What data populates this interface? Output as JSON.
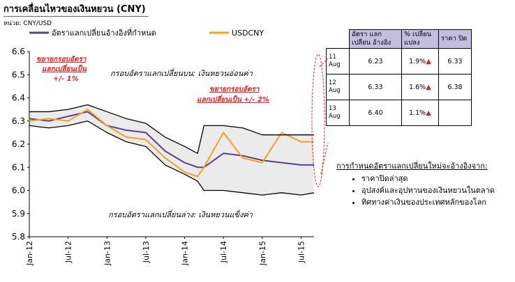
{
  "page": {
    "title": "การเคลื่อนไหวของเงินหยวน (CNY)",
    "unit": "หน่วย: CNY/USD"
  },
  "chart_data": {
    "type": "line",
    "title": "การเคลื่อนไหวของเงินหยวน (CNY)",
    "ylabel": "CNY/USD",
    "ylim": [
      5.8,
      6.6
    ],
    "yticks": [
      "6.6",
      "6.5",
      "6.4",
      "6.3",
      "6.2",
      "6.1",
      "6.0",
      "5.9",
      "5.8"
    ],
    "xticks": [
      "Jan-12",
      "Jul-12",
      "Jan-13",
      "Jul-13",
      "Jan-14",
      "Jul-14",
      "Jan-15",
      "Jul-15"
    ],
    "x_months": [
      0,
      3,
      6,
      9,
      12,
      15,
      18,
      21,
      24,
      26,
      27,
      30,
      33,
      36,
      39,
      42,
      44
    ],
    "series": [
      {
        "name": "อัตราแลกเปลี่ยนอ้างอิงที่กำหนด",
        "color": "#5b3f8f",
        "values": [
          6.31,
          6.3,
          6.32,
          6.34,
          6.28,
          6.26,
          6.25,
          6.17,
          6.12,
          6.1,
          6.1,
          6.16,
          6.15,
          6.13,
          6.12,
          6.11,
          6.11
        ]
      },
      {
        "name": "USDCNY",
        "color": "#f4a020",
        "values": [
          6.3,
          6.31,
          6.3,
          6.35,
          6.28,
          6.23,
          6.22,
          6.14,
          6.08,
          6.06,
          6.1,
          6.25,
          6.14,
          6.12,
          6.25,
          6.21,
          6.21
        ]
      },
      {
        "name": "upper band",
        "color": "#000000",
        "values": [
          6.34,
          6.34,
          6.35,
          6.37,
          6.34,
          6.31,
          6.29,
          6.23,
          6.19,
          6.16,
          6.28,
          6.28,
          6.27,
          6.24,
          6.24,
          6.24,
          6.24
        ]
      },
      {
        "name": "lower band",
        "color": "#000000",
        "values": [
          6.28,
          6.27,
          6.28,
          6.3,
          6.25,
          6.21,
          6.19,
          6.11,
          6.07,
          6.04,
          6.0,
          6.0,
          5.99,
          5.98,
          5.99,
          5.98,
          5.99
        ]
      }
    ],
    "legend": [
      "อัตราแลกเปลี่ยนอ้างอิงที่กำหนด",
      "USDCNY"
    ],
    "annotations": {
      "band_upper": "กรอบอัตราแลกเปลี่ยนบน: เงินหยวนอ่อนค่า",
      "band_lower": "กรอบอัตราแลกเปลี่ยนล่าง: เงินหยวนแข็งค่า",
      "widen1_line1": "ขยายกรอบอัตรา",
      "widen1_line2": "แลกเปลี่ยนเป็น",
      "widen1_line3": "+/- 1%",
      "widen2_line1": "ขยายกรอบอัตรา",
      "widen2_line2": "แลกเปลี่ยนเป็น +/- 2%"
    }
  },
  "table": {
    "headers": [
      "",
      "อัตรา แลกเปลี่ยน อ้างอิง",
      "% เปลี่ยน แปลง",
      "ราคา ปิด"
    ],
    "rows": [
      {
        "date1": "11",
        "date2": "Aug",
        "ref": "6.23",
        "change": "1.9%",
        "close": "6.33"
      },
      {
        "date1": "12",
        "date2": "Aug",
        "ref": "6.33",
        "change": "1.6%",
        "close": "6.38"
      },
      {
        "date1": "13",
        "date2": "Aug",
        "ref": "6.40",
        "change": "1.1%",
        "close": ""
      }
    ]
  },
  "notes": {
    "heading": "การกำหนดอัตราแลกเปลี่ยนใหม่จะอ้างอิงจาก:",
    "items": [
      "ราคาปิดล่าสุด",
      "อุปสงค์และอุปทานของเงินหยวนในตลาด",
      "ทิศทางค่าเงินของประเทศหลักของโลก"
    ]
  }
}
